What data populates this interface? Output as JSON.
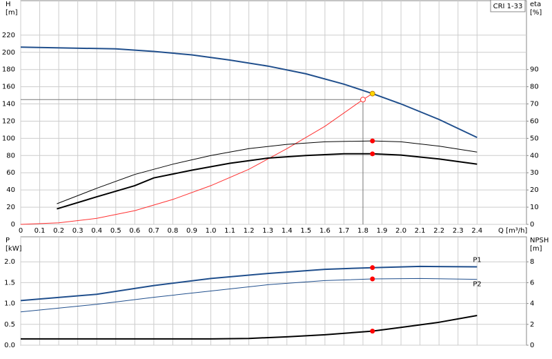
{
  "chart_data": [
    {
      "type": "line",
      "label": "CRI 1-33",
      "ylabel": [
        "H",
        "[m]"
      ],
      "y2label": [
        "eta",
        "[%]"
      ],
      "xlabel": "Q [m³/h]",
      "xlim": [
        0,
        2.66
      ],
      "ylim": [
        0,
        260
      ],
      "y2lim": [
        0,
        130
      ],
      "xticks": [
        0,
        0.1,
        0.2,
        0.3,
        0.4,
        0.5,
        0.6,
        0.7,
        0.8,
        0.9,
        {
          "value": 1,
          "label": "1.0"
        },
        1.1,
        1.2,
        1.3,
        1.4,
        1.5,
        1.6,
        1.7,
        1.8,
        1.9,
        {
          "value": 2,
          "label": "2.0"
        },
        2.1,
        2.2,
        2.3,
        2.4
      ],
      "yticks": [
        0,
        20,
        40,
        60,
        80,
        100,
        120,
        140,
        160,
        180,
        200,
        220
      ],
      "y2ticks": [
        0,
        10,
        20,
        30,
        40,
        50,
        60,
        70,
        80,
        90
      ],
      "grid": true,
      "series": [
        {
          "color": "#1f4e8c",
          "width": 2,
          "x": [
            0,
            0.5,
            0.7,
            0.9,
            1.1,
            1.3,
            1.5,
            1.7,
            1.85,
            2.0,
            2.2,
            2.4
          ],
          "values": [
            206,
            204,
            201,
            197,
            191,
            184,
            175,
            163,
            152,
            140,
            122,
            101
          ]
        },
        {
          "color": "#ff3030",
          "width": 1,
          "x": [
            0,
            0.2,
            0.4,
            0.6,
            0.8,
            1.0,
            1.2,
            1.4,
            1.6,
            1.8,
            1.85
          ],
          "values": [
            0,
            1.8,
            7,
            16,
            29,
            45,
            64,
            88,
            114,
            145,
            152
          ]
        },
        {
          "color": "#000000",
          "width": 1,
          "axis": "y2",
          "x": [
            0.19,
            0.4,
            0.6,
            0.8,
            1.0,
            1.2,
            1.4,
            1.6,
            1.85,
            2.0,
            2.2,
            2.4
          ],
          "values": [
            12,
            21,
            29,
            35,
            40,
            44,
            46.5,
            48,
            48.5,
            48,
            45.5,
            42
          ]
        },
        {
          "color": "#000000",
          "width": 2,
          "axis": "y2",
          "x": [
            0.19,
            0.4,
            0.6,
            0.7,
            0.9,
            1.1,
            1.3,
            1.5,
            1.7,
            1.85,
            2.0,
            2.2,
            2.4
          ],
          "values": [
            9,
            16,
            22.5,
            27,
            31.5,
            35.5,
            38.5,
            40,
            41,
            41,
            40.3,
            38,
            35
          ]
        }
      ],
      "guides": [
        {
          "x": [
            0,
            1.8
          ],
          "y": [
            145,
            145
          ]
        },
        {
          "x": [
            1.8,
            1.8
          ],
          "y": [
            145,
            0
          ]
        }
      ],
      "markers": [
        {
          "x": 1.8,
          "y": 145,
          "color": "#ff3030",
          "hollow": true
        },
        {
          "x": 1.85,
          "y": 152,
          "color": "#ffd700"
        },
        {
          "x": 1.85,
          "y": 48.5,
          "axis": "y2",
          "color": "#ff0000"
        },
        {
          "x": 1.85,
          "y": 41,
          "axis": "y2",
          "color": "#ff0000"
        }
      ]
    },
    {
      "type": "line",
      "ylabel": [
        "P",
        "[kW]"
      ],
      "y2label": [
        "NPSH",
        "[m]"
      ],
      "xlim": [
        0,
        2.66
      ],
      "ylim": [
        0,
        2.6
      ],
      "y2lim": [
        0,
        10.4
      ],
      "xticks": [
        0,
        0.1,
        0.2,
        0.3,
        0.4,
        0.5,
        0.6,
        0.7,
        0.8,
        0.9,
        1,
        1.1,
        1.2,
        1.3,
        1.4,
        1.5,
        1.6,
        1.7,
        1.8,
        1.9,
        2,
        2.1,
        2.2,
        2.3,
        2.4
      ],
      "yticks": [
        {
          "value": 0,
          "label": "0.0"
        },
        0.5,
        {
          "value": 1,
          "label": "1.0"
        },
        1.5,
        {
          "value": 2,
          "label": "2.0"
        }
      ],
      "y2ticks": [
        0,
        2,
        4,
        6,
        8
      ],
      "grid": true,
      "series": [
        {
          "name": "P1",
          "color": "#1f4e8c",
          "width": 2,
          "x": [
            0,
            0.4,
            0.7,
            1.0,
            1.3,
            1.6,
            1.85,
            2.1,
            2.4
          ],
          "values": [
            1.07,
            1.22,
            1.43,
            1.6,
            1.72,
            1.82,
            1.86,
            1.89,
            1.88
          ]
        },
        {
          "name": "P2",
          "color": "#1f4e8c",
          "width": 1,
          "x": [
            0,
            0.4,
            0.7,
            1.0,
            1.3,
            1.6,
            1.85,
            2.1,
            2.4
          ],
          "values": [
            0.8,
            0.98,
            1.15,
            1.3,
            1.45,
            1.55,
            1.59,
            1.6,
            1.58
          ]
        },
        {
          "color": "#000000",
          "width": 2,
          "axis": "y2",
          "x": [
            0,
            0.7,
            1.0,
            1.2,
            1.4,
            1.6,
            1.85,
            2.0,
            2.2,
            2.4
          ],
          "values": [
            0.6,
            0.6,
            0.6,
            0.65,
            0.8,
            1.0,
            1.35,
            1.7,
            2.2,
            2.85
          ]
        }
      ],
      "markers": [
        {
          "x": 1.85,
          "y": 1.86,
          "color": "#ff0000"
        },
        {
          "x": 1.85,
          "y": 1.59,
          "color": "#ff0000"
        },
        {
          "x": 1.85,
          "y": 1.35,
          "axis": "y2",
          "color": "#ff0000"
        }
      ]
    }
  ]
}
